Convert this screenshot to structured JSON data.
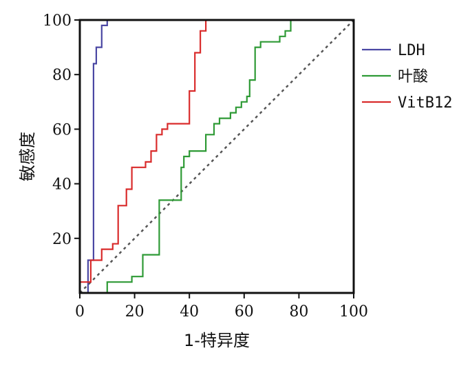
{
  "chart_data": {
    "type": "line",
    "title": "",
    "xlabel": "1-特异度",
    "ylabel": "敏感度",
    "xlim": [
      0,
      100
    ],
    "ylim": [
      0,
      100
    ],
    "x_ticks": [
      "0",
      "20",
      "40",
      "60",
      "80",
      "100"
    ],
    "y_ticks": [
      "20",
      "40",
      "60",
      "80",
      "100"
    ],
    "grid": false,
    "legend_position": "right",
    "reference_line": {
      "x": [
        0,
        100
      ],
      "y": [
        0,
        100
      ],
      "style": "dotted",
      "color": "#555555"
    },
    "series": [
      {
        "name": "LDH",
        "color": "#4a47a3",
        "x": [
          3,
          3,
          5,
          5,
          6,
          6,
          8,
          8,
          10,
          10,
          100
        ],
        "y": [
          0,
          12,
          12,
          84,
          84,
          90,
          90,
          98,
          98,
          100,
          100
        ]
      },
      {
        "name": "叶酸",
        "color": "#2e9a35",
        "x": [
          10,
          10,
          19,
          19,
          23,
          23,
          29,
          29,
          37,
          37,
          38,
          38,
          40,
          40,
          46,
          46,
          49,
          49,
          51,
          51,
          55,
          55,
          57,
          57,
          59,
          59,
          61,
          61,
          62,
          62,
          64,
          64,
          66,
          66,
          73,
          73,
          75,
          75,
          77,
          77,
          100
        ],
        "y": [
          0,
          4,
          4,
          6,
          6,
          14,
          14,
          34,
          34,
          46,
          46,
          50,
          50,
          52,
          52,
          58,
          58,
          62,
          62,
          64,
          64,
          66,
          66,
          68,
          68,
          70,
          70,
          72,
          72,
          78,
          78,
          90,
          90,
          92,
          92,
          94,
          94,
          96,
          96,
          100,
          100
        ]
      },
      {
        "name": "VitB12",
        "color": "#d92b2b",
        "x": [
          0,
          0,
          4,
          4,
          8,
          8,
          12,
          12,
          14,
          14,
          17,
          17,
          19,
          19,
          24,
          24,
          26,
          26,
          28,
          28,
          30,
          30,
          32,
          32,
          34,
          34,
          36,
          36,
          40,
          40,
          42,
          42,
          44,
          44,
          46,
          46,
          100
        ],
        "y": [
          0,
          4,
          4,
          12,
          12,
          16,
          16,
          18,
          18,
          32,
          32,
          38,
          38,
          46,
          46,
          48,
          48,
          52,
          52,
          58,
          58,
          60,
          60,
          62,
          62,
          62,
          62,
          62,
          62,
          74,
          74,
          88,
          88,
          96,
          96,
          100,
          100
        ]
      }
    ]
  }
}
